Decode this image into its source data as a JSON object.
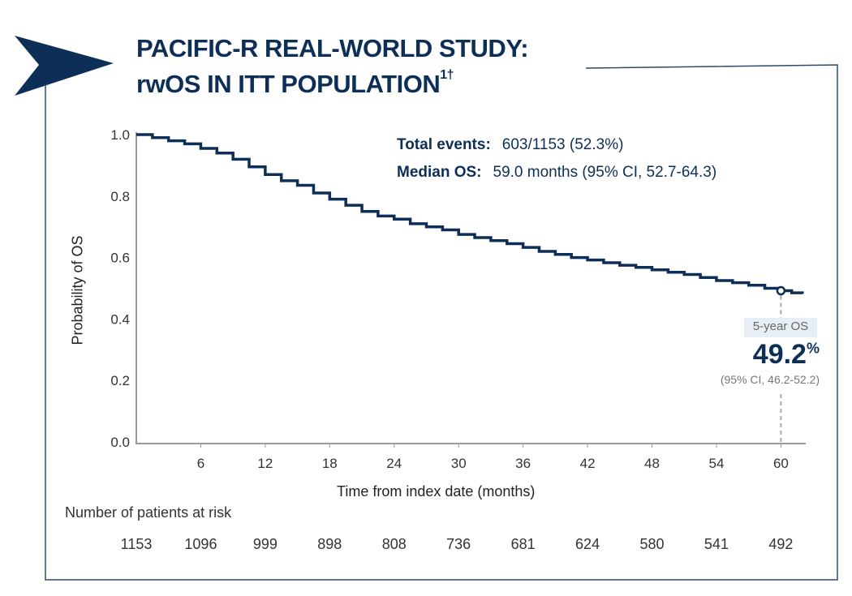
{
  "header": {
    "title_line1": "PACIFIC-R REAL-WORLD STUDY:",
    "title_line2": "rwOS IN ITT POPULATION",
    "title_superscript": "1†"
  },
  "stats": {
    "total_events_label": "Total events:",
    "total_events_value": "603/1153 (52.3%)",
    "median_os_label": "Median OS:",
    "median_os_value": "59.0 months (95% CI, 52.7-64.3)"
  },
  "annotation": {
    "label": "5-year OS",
    "value": "49.2",
    "unit": "%",
    "ci": "(95% CI, 46.2-52.2)",
    "x": 60,
    "y": 0.492
  },
  "colors": {
    "navy": "#0d2f57",
    "axis": "#999999",
    "label_bg": "#e8eef5"
  },
  "risk_table": {
    "title": "Number of patients at risk",
    "values": [
      "1153",
      "1096",
      "999",
      "898",
      "808",
      "736",
      "681",
      "624",
      "580",
      "541",
      "492"
    ]
  },
  "chart_data": {
    "type": "line",
    "subtype": "kaplan-meier step",
    "xlabel": "Time from index date (months)",
    "ylabel": "Probability of OS",
    "xlim": [
      0,
      62.5
    ],
    "ylim": [
      0,
      1.0
    ],
    "xticks": [
      "6",
      "12",
      "18",
      "24",
      "30",
      "36",
      "42",
      "48",
      "54",
      "60"
    ],
    "yticks": [
      "0.0",
      "0.2",
      "0.4",
      "0.6",
      "0.8",
      "1.0"
    ],
    "risk_times": [
      0,
      6,
      12,
      18,
      24,
      30,
      36,
      42,
      48,
      54,
      60
    ],
    "grid": false,
    "series": [
      {
        "x": [
          0,
          1.5,
          3,
          4.5,
          6,
          7.5,
          9,
          10.5,
          12,
          13.5,
          15,
          16.5,
          18,
          19.5,
          21,
          22.5,
          24,
          25.5,
          27,
          28.5,
          30,
          31.5,
          33,
          34.5,
          36,
          37.5,
          39,
          40.5,
          42,
          43.5,
          45,
          46.5,
          48,
          49.5,
          51,
          52.5,
          54,
          55.5,
          57,
          58.5,
          60,
          61,
          62
        ],
        "y": [
          1.0,
          0.99,
          0.98,
          0.97,
          0.955,
          0.94,
          0.92,
          0.895,
          0.87,
          0.85,
          0.835,
          0.81,
          0.79,
          0.77,
          0.75,
          0.735,
          0.725,
          0.71,
          0.7,
          0.69,
          0.675,
          0.665,
          0.655,
          0.645,
          0.633,
          0.62,
          0.61,
          0.6,
          0.592,
          0.583,
          0.575,
          0.568,
          0.56,
          0.552,
          0.545,
          0.535,
          0.525,
          0.518,
          0.51,
          0.5,
          0.492,
          0.485,
          0.482
        ]
      }
    ]
  }
}
